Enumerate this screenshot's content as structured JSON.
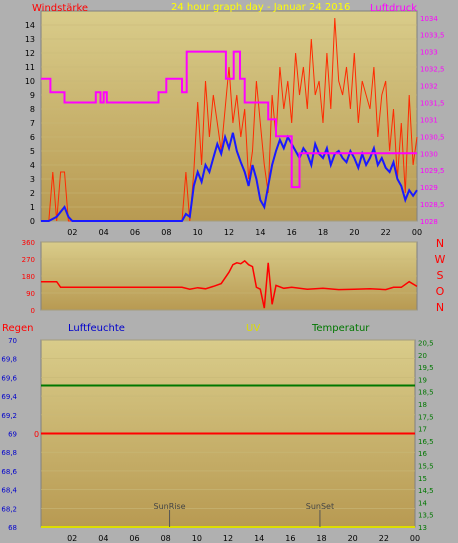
{
  "chart_data": [
    {
      "type": "line",
      "title": "24 hour graph day - Januar 24 2016",
      "ylabel_left": "Windstärke",
      "ylabel_right": "Luftdruck",
      "ylim_left": [
        0,
        15
      ],
      "ylim_right": [
        1028,
        1034.2
      ],
      "yticks_left": [
        "0",
        "1",
        "2",
        "3",
        "4",
        "5",
        "6",
        "7",
        "8",
        "9",
        "10",
        "11",
        "12",
        "13",
        "14"
      ],
      "yticks_right": [
        "1028",
        "1028,5",
        "1029",
        "1029,5",
        "1030",
        "1030,5",
        "1031",
        "1031,5",
        "1032",
        "1032,5",
        "1033",
        "1033,5",
        "1034"
      ],
      "xticks": [
        "02",
        "04",
        "06",
        "08",
        "10",
        "12",
        "14",
        "16",
        "18",
        "20",
        "22",
        "00"
      ],
      "colors": {
        "gust": "#ff2a00",
        "wind": "#1a1aff",
        "pressure": "#ff00ff"
      },
      "series": [
        {
          "name": "gust",
          "axis": "left",
          "x": [
            0,
            0.5,
            0.75,
            1.0,
            1.25,
            1.5,
            1.75,
            2.0,
            2.25,
            2.5,
            2.75,
            3,
            4,
            5,
            6,
            7,
            8,
            9,
            9.25,
            9.5,
            9.75,
            10,
            10.25,
            10.5,
            10.75,
            11,
            11.25,
            11.5,
            11.75,
            12,
            12.25,
            12.5,
            12.75,
            13,
            13.25,
            13.5,
            13.75,
            14,
            14.25,
            14.5,
            14.75,
            15,
            15.25,
            15.5,
            15.75,
            16,
            16.25,
            16.5,
            16.75,
            17,
            17.25,
            17.5,
            17.75,
            18,
            18.25,
            18.5,
            18.75,
            19,
            19.25,
            19.5,
            19.75,
            20,
            20.25,
            20.5,
            20.75,
            21,
            21.25,
            21.5,
            21.75,
            22,
            22.25,
            22.5,
            22.75,
            23,
            23.25,
            23.5,
            23.75,
            24
          ],
          "y": [
            0,
            0,
            3.5,
            0,
            3.5,
            3.5,
            0,
            0,
            0,
            0,
            0,
            0,
            0,
            0,
            0,
            0,
            0,
            0,
            3.5,
            0,
            3.5,
            8.5,
            4,
            10,
            6,
            9,
            7,
            5,
            8,
            11,
            7,
            9,
            6,
            8,
            3,
            5,
            10,
            7,
            4,
            2,
            9,
            6,
            11,
            8,
            10,
            7,
            12,
            9,
            11,
            8,
            13,
            9,
            10,
            7,
            12,
            8,
            14.5,
            10,
            9,
            11,
            8,
            12,
            7,
            10,
            9,
            8,
            11,
            6,
            9,
            10,
            5,
            8,
            3,
            7,
            2,
            9,
            4,
            6
          ]
        },
        {
          "name": "wind",
          "axis": "left",
          "x": [
            0,
            0.5,
            1.0,
            1.5,
            1.75,
            2.0,
            2.5,
            3,
            4,
            5,
            6,
            7,
            8,
            9,
            9.25,
            9.5,
            9.75,
            10,
            10.25,
            10.5,
            10.75,
            11,
            11.25,
            11.5,
            11.75,
            12,
            12.25,
            12.5,
            12.75,
            13,
            13.25,
            13.5,
            13.75,
            14,
            14.25,
            14.5,
            14.75,
            15,
            15.25,
            15.5,
            15.75,
            16,
            16.25,
            16.5,
            16.75,
            17,
            17.25,
            17.5,
            17.75,
            18,
            18.25,
            18.5,
            18.75,
            19,
            19.25,
            19.5,
            19.75,
            20,
            20.25,
            20.5,
            20.75,
            21,
            21.25,
            21.5,
            21.75,
            22,
            22.25,
            22.5,
            22.75,
            23,
            23.25,
            23.5,
            23.75,
            24
          ],
          "y": [
            0,
            0,
            0.3,
            1.0,
            0.3,
            0,
            0,
            0,
            0,
            0,
            0,
            0,
            0,
            0,
            0.5,
            0.3,
            2.5,
            3.5,
            2.8,
            4.0,
            3.5,
            4.5,
            5.5,
            4.8,
            6.0,
            5.2,
            6.3,
            5.0,
            4.2,
            3.5,
            2.5,
            4.0,
            3.0,
            1.5,
            1.0,
            2.5,
            4.0,
            5.0,
            5.8,
            5.2,
            6.0,
            5.5,
            5.0,
            4.5,
            5.2,
            4.8,
            4.0,
            5.5,
            4.8,
            4.5,
            5.2,
            4.0,
            4.8,
            5.0,
            4.5,
            4.2,
            5.0,
            4.5,
            3.8,
            4.8,
            4.0,
            4.5,
            5.2,
            4.0,
            4.5,
            3.8,
            3.5,
            4.2,
            3.0,
            2.5,
            1.5,
            2.2,
            1.8,
            2.2
          ]
        },
        {
          "name": "pressure",
          "axis": "right",
          "x": [
            0,
            0.6,
            0.6,
            1.5,
            1.5,
            3.5,
            3.5,
            3.8,
            3.8,
            4.0,
            4.0,
            4.2,
            4.2,
            7.5,
            7.5,
            8.0,
            8.0,
            9.0,
            9.0,
            9.3,
            9.3,
            11.8,
            11.8,
            12.3,
            12.3,
            12.7,
            12.7,
            13.0,
            13.0,
            14.5,
            14.5,
            15.0,
            15.0,
            16.0,
            16.0,
            16.5,
            16.5,
            24
          ],
          "y": [
            1032.2,
            1032.2,
            1031.8,
            1031.8,
            1031.5,
            1031.5,
            1031.8,
            1031.8,
            1031.5,
            1031.5,
            1031.8,
            1031.8,
            1031.5,
            1031.5,
            1031.8,
            1031.8,
            1032.2,
            1032.2,
            1031.8,
            1031.8,
            1033.0,
            1033.0,
            1032.2,
            1032.2,
            1033.0,
            1033.0,
            1032.2,
            1032.2,
            1031.5,
            1031.5,
            1031.0,
            1031.0,
            1030.5,
            1030.5,
            1029.0,
            1029.0,
            1030.0,
            1030.0
          ]
        }
      ]
    },
    {
      "type": "line",
      "title": "",
      "ylabel_right": [
        "N",
        "W",
        "S",
        "O",
        "N"
      ],
      "ylim": [
        0,
        360
      ],
      "yticks": [
        "0",
        "90",
        "180",
        "270",
        "360"
      ],
      "xticks": [
        "02",
        "04",
        "06",
        "08",
        "10",
        "12",
        "14",
        "16",
        "18",
        "20",
        "22",
        "00"
      ],
      "colors": {
        "direction": "#ff0000"
      },
      "series": [
        {
          "name": "direction",
          "x": [
            0,
            1.0,
            1.25,
            2,
            4,
            6,
            8,
            9.0,
            9.5,
            10,
            10.5,
            11,
            11.5,
            12,
            12.25,
            12.5,
            12.75,
            13,
            13.25,
            13.5,
            13.75,
            14,
            14.25,
            14.5,
            14.75,
            15,
            15.5,
            16,
            17,
            18,
            19,
            20,
            21,
            22,
            22.5,
            23,
            23.5,
            24
          ],
          "y": [
            150,
            150,
            120,
            120,
            120,
            120,
            120,
            120,
            110,
            118,
            112,
            125,
            140,
            200,
            240,
            250,
            245,
            260,
            240,
            230,
            120,
            110,
            10,
            250,
            30,
            130,
            115,
            120,
            110,
            115,
            108,
            110,
            112,
            108,
            120,
            120,
            150,
            125
          ]
        }
      ]
    },
    {
      "type": "line",
      "title": "",
      "legend": [
        {
          "label": "Regen",
          "color": "#ff0000"
        },
        {
          "label": "Luftfeuchte",
          "color": "#0000cc"
        },
        {
          "label": "UV",
          "color": "#dddd00"
        },
        {
          "label": "Temperatur",
          "color": "#007700"
        }
      ],
      "ylim_left": [
        68,
        70
      ],
      "ylim_right": [
        13,
        20.6
      ],
      "yticks_left": [
        "68",
        "68,2",
        "68,4",
        "68,6",
        "68,8",
        "69",
        "69,2",
        "69,4",
        "69,6",
        "69,8",
        "70"
      ],
      "yticks_right": [
        "13",
        "13,5",
        "14",
        "14,5",
        "15",
        "15,5",
        "16",
        "16,5",
        "17",
        "17,5",
        "18",
        "18,5",
        "19",
        "19,5",
        "20",
        "20,5"
      ],
      "xticks": [
        "02",
        "04",
        "06",
        "08",
        "10",
        "12",
        "14",
        "16",
        "18",
        "20",
        "22",
        "00"
      ],
      "inner_label": "0",
      "annotations": [
        {
          "text": "SunRise",
          "x": 8.25
        },
        {
          "text": "SunSet",
          "x": 17.9
        }
      ],
      "series": [
        {
          "name": "Temperatur",
          "axis": "right",
          "x": [
            0,
            24
          ],
          "y": [
            18.75,
            18.75
          ]
        },
        {
          "name": "Regen",
          "axis": "left",
          "x": [
            0,
            24
          ],
          "y": [
            69,
            69
          ]
        },
        {
          "name": "UV",
          "axis": "right",
          "x": [
            0,
            24
          ],
          "y": [
            13,
            13
          ]
        }
      ]
    }
  ]
}
